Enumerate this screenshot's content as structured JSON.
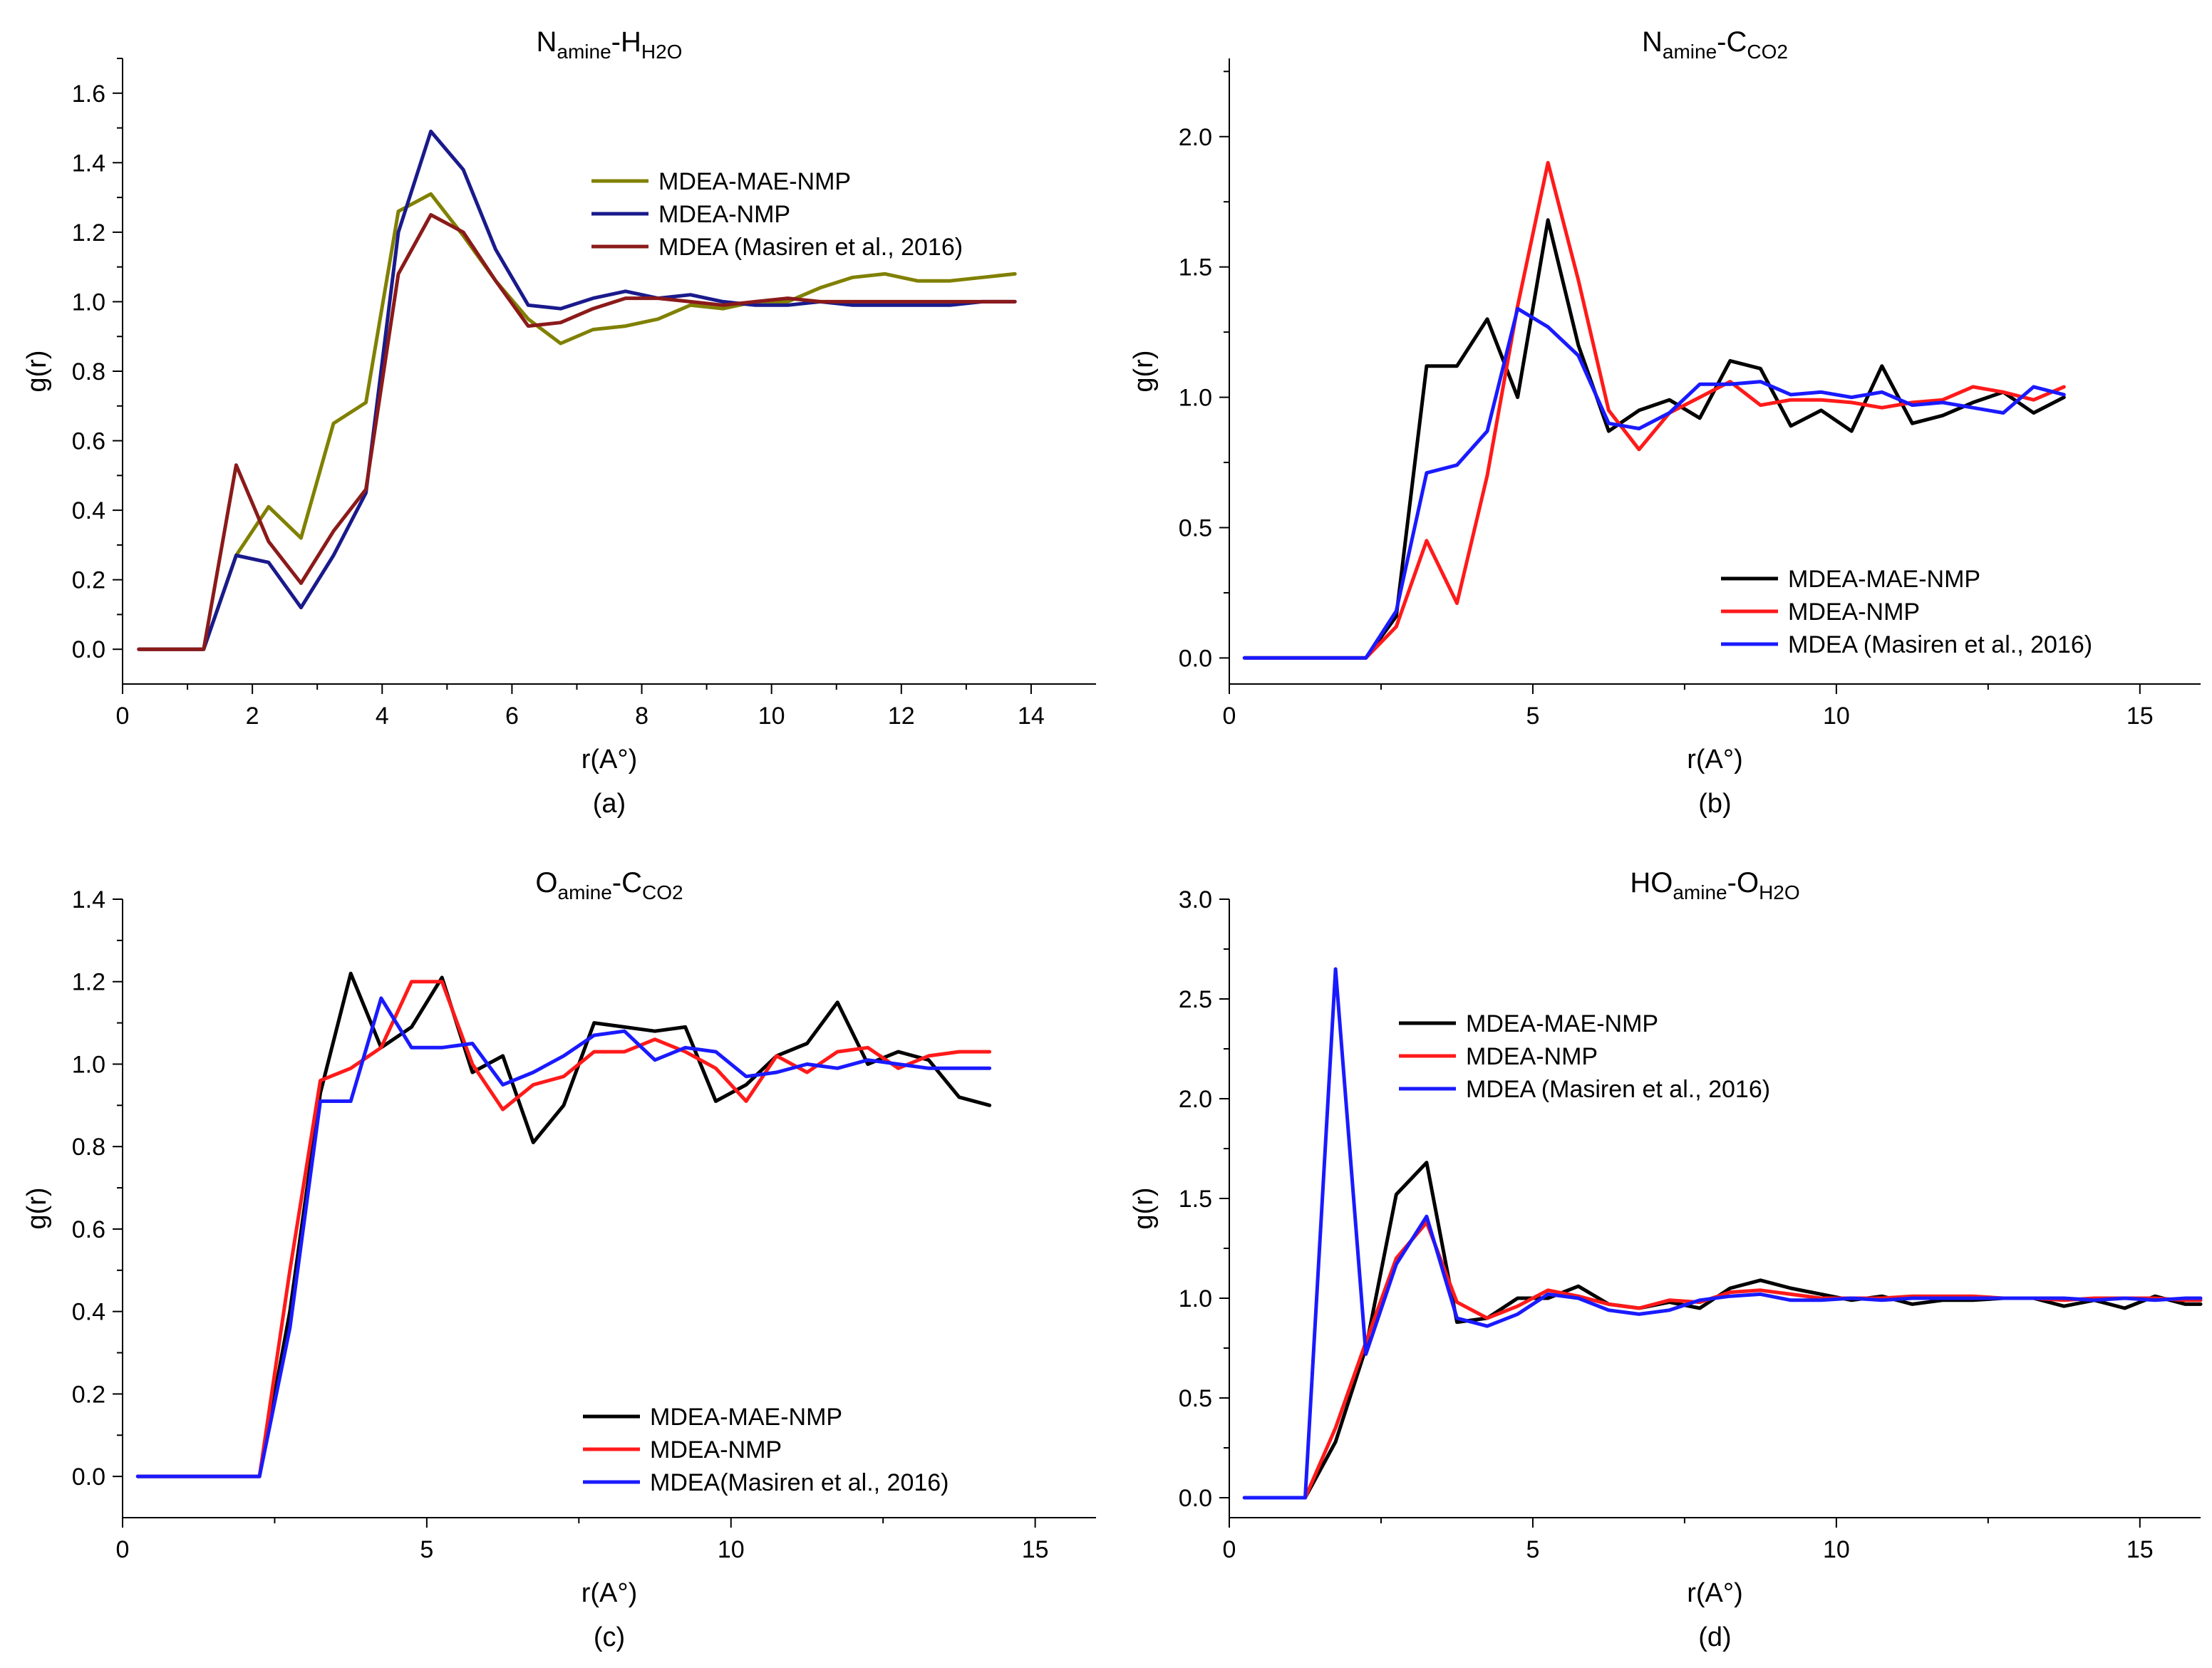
{
  "chart_data": [
    {
      "type": "line",
      "panel": "(a)",
      "title": {
        "main": "N",
        "sub1": "amine",
        "mid": "-H",
        "sub2": "H2O"
      },
      "xlabel": "r(A°)",
      "ylabel": "g(r)",
      "xlim": [
        0,
        15
      ],
      "ylim": [
        -0.1,
        1.7
      ],
      "xticks": [
        0,
        2,
        4,
        6,
        8,
        10,
        12,
        14
      ],
      "yticks": [
        0.0,
        0.2,
        0.4,
        0.6,
        0.8,
        1.0,
        1.2,
        1.4,
        1.6
      ],
      "ytick_decimals": 1,
      "grid": false,
      "legend_position": "upper-middle",
      "series": [
        {
          "name": "MDEA-MAE-NMP",
          "color": "#808000",
          "x": [
            0.25,
            0.75,
            1.25,
            1.75,
            2.25,
            2.75,
            3.25,
            3.75,
            4.25,
            4.75,
            5.25,
            5.75,
            6.25,
            6.75,
            7.25,
            7.75,
            8.25,
            8.75,
            9.25,
            9.75,
            10.25,
            10.75,
            11.25,
            11.75,
            12.25,
            12.75,
            13.25,
            13.75
          ],
          "y": [
            0,
            0,
            0,
            0.27,
            0.41,
            0.32,
            0.65,
            0.71,
            1.26,
            1.31,
            1.19,
            1.06,
            0.95,
            0.88,
            0.92,
            0.93,
            0.95,
            0.99,
            0.98,
            1.0,
            1.0,
            1.04,
            1.07,
            1.08,
            1.06,
            1.06,
            1.07,
            1.08
          ]
        },
        {
          "name": "MDEA-NMP",
          "color": "#1a1a8c",
          "x": [
            0.25,
            0.75,
            1.25,
            1.75,
            2.25,
            2.75,
            3.25,
            3.75,
            4.25,
            4.75,
            5.25,
            5.75,
            6.25,
            6.75,
            7.25,
            7.75,
            8.25,
            8.75,
            9.25,
            9.75,
            10.25,
            10.75,
            11.25,
            11.75,
            12.25,
            12.75,
            13.25,
            13.75
          ],
          "y": [
            0,
            0,
            0,
            0.27,
            0.25,
            0.12,
            0.27,
            0.45,
            1.2,
            1.49,
            1.38,
            1.15,
            0.99,
            0.98,
            1.01,
            1.03,
            1.01,
            1.02,
            1.0,
            0.99,
            0.99,
            1.0,
            0.99,
            0.99,
            0.99,
            0.99,
            1.0,
            1.0
          ]
        },
        {
          "name": "MDEA (Masiren et al., 2016)",
          "color": "#8b1a1a",
          "x": [
            0.25,
            0.75,
            1.25,
            1.75,
            2.25,
            2.75,
            3.25,
            3.75,
            4.25,
            4.75,
            5.25,
            5.75,
            6.25,
            6.75,
            7.25,
            7.75,
            8.25,
            8.75,
            9.25,
            9.75,
            10.25,
            10.75,
            11.25,
            11.75,
            12.25,
            12.75,
            13.25,
            13.75
          ],
          "y": [
            0,
            0,
            0,
            0.53,
            0.31,
            0.19,
            0.34,
            0.46,
            1.08,
            1.25,
            1.2,
            1.06,
            0.93,
            0.94,
            0.98,
            1.01,
            1.01,
            1.0,
            0.99,
            1.0,
            1.01,
            1.0,
            1.0,
            1.0,
            1.0,
            1.0,
            1.0,
            1.0
          ]
        }
      ]
    },
    {
      "type": "line",
      "panel": "(b)",
      "title": {
        "main": "N",
        "sub1": "amine",
        "mid": "-C",
        "sub2": "CO2"
      },
      "xlabel": "r(A°)",
      "ylabel": "g(r)",
      "xlim": [
        0,
        16
      ],
      "ylim": [
        -0.1,
        2.3
      ],
      "xticks": [
        0,
        5,
        10,
        15
      ],
      "yticks": [
        0.0,
        0.5,
        1.0,
        1.5,
        2.0
      ],
      "ytick_decimals": 1,
      "grid": false,
      "legend_position": "lower-right",
      "series": [
        {
          "name": "MDEA-MAE-NMP",
          "color": "#000000",
          "x": [
            0.25,
            0.75,
            1.25,
            1.75,
            2.25,
            2.75,
            3.25,
            3.75,
            4.25,
            4.75,
            5.25,
            5.75,
            6.25,
            6.75,
            7.25,
            7.75,
            8.25,
            8.75,
            9.25,
            9.75,
            10.25,
            10.75,
            11.25,
            11.75,
            12.25,
            12.75,
            13.25,
            13.75
          ],
          "y": [
            0,
            0,
            0,
            0,
            0,
            0.16,
            1.12,
            1.12,
            1.3,
            1.0,
            1.68,
            1.2,
            0.87,
            0.95,
            0.99,
            0.92,
            1.14,
            1.11,
            0.89,
            0.95,
            0.87,
            1.12,
            0.9,
            0.93,
            0.98,
            1.02,
            0.94,
            1.0
          ]
        },
        {
          "name": "MDEA-NMP",
          "color": "#ff1a1a",
          "x": [
            0.25,
            0.75,
            1.25,
            1.75,
            2.25,
            2.75,
            3.25,
            3.75,
            4.25,
            4.75,
            5.25,
            5.75,
            6.25,
            6.75,
            7.25,
            7.75,
            8.25,
            8.75,
            9.25,
            9.75,
            10.25,
            10.75,
            11.25,
            11.75,
            12.25,
            12.75,
            13.25,
            13.75
          ],
          "y": [
            0,
            0,
            0,
            0,
            0,
            0.12,
            0.45,
            0.21,
            0.7,
            1.35,
            1.9,
            1.45,
            0.95,
            0.8,
            0.94,
            1.0,
            1.06,
            0.97,
            0.99,
            0.99,
            0.98,
            0.96,
            0.98,
            0.99,
            1.04,
            1.02,
            0.99,
            1.04
          ]
        },
        {
          "name": "MDEA (Masiren et al., 2016)",
          "color": "#1a1aff",
          "x": [
            0.25,
            0.75,
            1.25,
            1.75,
            2.25,
            2.75,
            3.25,
            3.75,
            4.25,
            4.75,
            5.25,
            5.75,
            6.25,
            6.75,
            7.25,
            7.75,
            8.25,
            8.75,
            9.25,
            9.75,
            10.25,
            10.75,
            11.25,
            11.75,
            12.25,
            12.75,
            13.25,
            13.75
          ],
          "y": [
            0,
            0,
            0,
            0,
            0,
            0.18,
            0.71,
            0.74,
            0.87,
            1.34,
            1.27,
            1.16,
            0.9,
            0.88,
            0.94,
            1.05,
            1.05,
            1.06,
            1.01,
            1.02,
            1.0,
            1.02,
            0.97,
            0.98,
            0.96,
            0.94,
            1.04,
            1.01
          ]
        }
      ]
    },
    {
      "type": "line",
      "panel": "(c)",
      "title": {
        "main": "O",
        "sub1": "amine",
        "mid": "-C",
        "sub2": "CO2"
      },
      "xlabel": "r(A°)",
      "ylabel": "g(r)",
      "xlim": [
        0,
        16
      ],
      "ylim": [
        -0.1,
        1.4
      ],
      "xticks": [
        0,
        5,
        10,
        15
      ],
      "yticks": [
        0.0,
        0.2,
        0.4,
        0.6,
        0.8,
        1.0,
        1.2,
        1.4
      ],
      "ytick_decimals": 1,
      "grid": false,
      "legend_position": "lower-middle",
      "series": [
        {
          "name": "MDEA-MAE-NMP",
          "color": "#000000",
          "x": [
            0.25,
            0.75,
            1.25,
            1.75,
            2.25,
            2.75,
            3.25,
            3.75,
            4.25,
            4.75,
            5.25,
            5.75,
            6.25,
            6.75,
            7.25,
            7.75,
            8.25,
            8.75,
            9.25,
            9.75,
            10.25,
            10.75,
            11.25,
            11.75,
            12.25,
            12.75,
            13.25,
            13.75,
            14.25
          ],
          "y": [
            0,
            0,
            0,
            0,
            0,
            0.4,
            0.93,
            1.22,
            1.04,
            1.09,
            1.21,
            0.98,
            1.02,
            0.81,
            0.9,
            1.1,
            1.09,
            1.08,
            1.09,
            0.91,
            0.95,
            1.02,
            1.05,
            1.15,
            1.0,
            1.03,
            1.01,
            0.92,
            0.9
          ]
        },
        {
          "name": "MDEA-NMP",
          "color": "#ff1a1a",
          "x": [
            0.25,
            0.75,
            1.25,
            1.75,
            2.25,
            2.75,
            3.25,
            3.75,
            4.25,
            4.75,
            5.25,
            5.75,
            6.25,
            6.75,
            7.25,
            7.75,
            8.25,
            8.75,
            9.25,
            9.75,
            10.25,
            10.75,
            11.25,
            11.75,
            12.25,
            12.75,
            13.25,
            13.75,
            14.25
          ],
          "y": [
            0,
            0,
            0,
            0,
            0,
            0.5,
            0.96,
            0.99,
            1.04,
            1.2,
            1.2,
            1.0,
            0.89,
            0.95,
            0.97,
            1.03,
            1.03,
            1.06,
            1.03,
            0.99,
            0.91,
            1.02,
            0.98,
            1.03,
            1.04,
            0.99,
            1.02,
            1.03,
            1.03
          ]
        },
        {
          "name": "MDEA(Masiren et al., 2016)",
          "color": "#1a1aff",
          "x": [
            0.25,
            0.75,
            1.25,
            1.75,
            2.25,
            2.75,
            3.25,
            3.75,
            4.25,
            4.75,
            5.25,
            5.75,
            6.25,
            6.75,
            7.25,
            7.75,
            8.25,
            8.75,
            9.25,
            9.75,
            10.25,
            10.75,
            11.25,
            11.75,
            12.25,
            12.75,
            13.25,
            13.75,
            14.25
          ],
          "y": [
            0,
            0,
            0,
            0,
            0,
            0.36,
            0.91,
            0.91,
            1.16,
            1.04,
            1.04,
            1.05,
            0.95,
            0.98,
            1.02,
            1.07,
            1.08,
            1.01,
            1.04,
            1.03,
            0.97,
            0.98,
            1.0,
            0.99,
            1.01,
            1.0,
            0.99,
            0.99,
            0.99
          ]
        }
      ]
    },
    {
      "type": "line",
      "panel": "(d)",
      "title": {
        "main": "HO",
        "sub1": "amine",
        "mid": "-O",
        "sub2": "H2O"
      },
      "xlabel": "r(A°)",
      "ylabel": "g(r)",
      "xlim": [
        0,
        16
      ],
      "ylim": [
        -0.1,
        3.0
      ],
      "xticks": [
        0,
        5,
        10,
        15
      ],
      "yticks": [
        0.0,
        0.5,
        1.0,
        1.5,
        2.0,
        2.5,
        3.0
      ],
      "ytick_decimals": 1,
      "grid": false,
      "legend_position": "top-left",
      "series": [
        {
          "name": "MDEA-MAE-NMP",
          "color": "#000000",
          "x": [
            0.25,
            0.75,
            1.25,
            1.75,
            2.25,
            2.75,
            3.25,
            3.75,
            4.25,
            4.75,
            5.25,
            5.75,
            6.25,
            6.75,
            7.25,
            7.75,
            8.25,
            8.75,
            9.25,
            9.75,
            10.25,
            10.75,
            11.25,
            11.75,
            12.25,
            12.75,
            13.25,
            13.75,
            14.25,
            14.75,
            15.25,
            15.75,
            16.0
          ],
          "y": [
            0,
            0,
            0,
            0.28,
            0.75,
            1.52,
            1.68,
            0.88,
            0.9,
            1.0,
            1.0,
            1.06,
            0.97,
            0.95,
            0.98,
            0.95,
            1.05,
            1.09,
            1.05,
            1.02,
            0.99,
            1.01,
            0.97,
            0.99,
            0.99,
            1.0,
            1.0,
            0.96,
            0.99,
            0.95,
            1.01,
            0.97,
            0.97
          ]
        },
        {
          "name": "MDEA-NMP",
          "color": "#ff1a1a",
          "x": [
            0.25,
            0.75,
            1.25,
            1.75,
            2.25,
            2.75,
            3.25,
            3.75,
            4.25,
            4.75,
            5.25,
            5.75,
            6.25,
            6.75,
            7.25,
            7.75,
            8.25,
            8.75,
            9.25,
            9.75,
            10.25,
            10.75,
            11.25,
            11.75,
            12.25,
            12.75,
            13.25,
            13.75,
            14.25,
            14.75,
            15.25,
            15.75,
            16.0
          ],
          "y": [
            0,
            0,
            0,
            0.35,
            0.78,
            1.2,
            1.38,
            0.98,
            0.9,
            0.96,
            1.04,
            1.01,
            0.97,
            0.95,
            0.99,
            0.98,
            1.03,
            1.04,
            1.02,
            1.0,
            1.0,
            1.0,
            1.01,
            1.01,
            1.01,
            1.0,
            1.0,
            0.99,
            1.0,
            1.0,
            1.0,
            0.99,
            0.99
          ]
        },
        {
          "name": "MDEA (Masiren et al., 2016)",
          "color": "#1a1aff",
          "x": [
            0.25,
            0.75,
            1.25,
            1.75,
            2.25,
            2.75,
            3.25,
            3.75,
            4.25,
            4.75,
            5.25,
            5.75,
            6.25,
            6.75,
            7.25,
            7.75,
            8.25,
            8.75,
            9.25,
            9.75,
            10.25,
            10.75,
            11.25,
            11.75,
            12.25,
            12.75,
            13.25,
            13.75,
            14.25,
            14.75,
            15.25,
            15.75,
            16.0
          ],
          "y": [
            0,
            0,
            0,
            2.65,
            0.72,
            1.17,
            1.41,
            0.9,
            0.86,
            0.92,
            1.02,
            1.0,
            0.94,
            0.92,
            0.94,
            0.99,
            1.01,
            1.02,
            0.99,
            0.99,
            1.0,
            0.99,
            1.0,
            1.0,
            1.0,
            1.0,
            1.0,
            1.0,
            0.99,
            1.0,
            0.99,
            1.0,
            1.0
          ]
        }
      ]
    }
  ]
}
